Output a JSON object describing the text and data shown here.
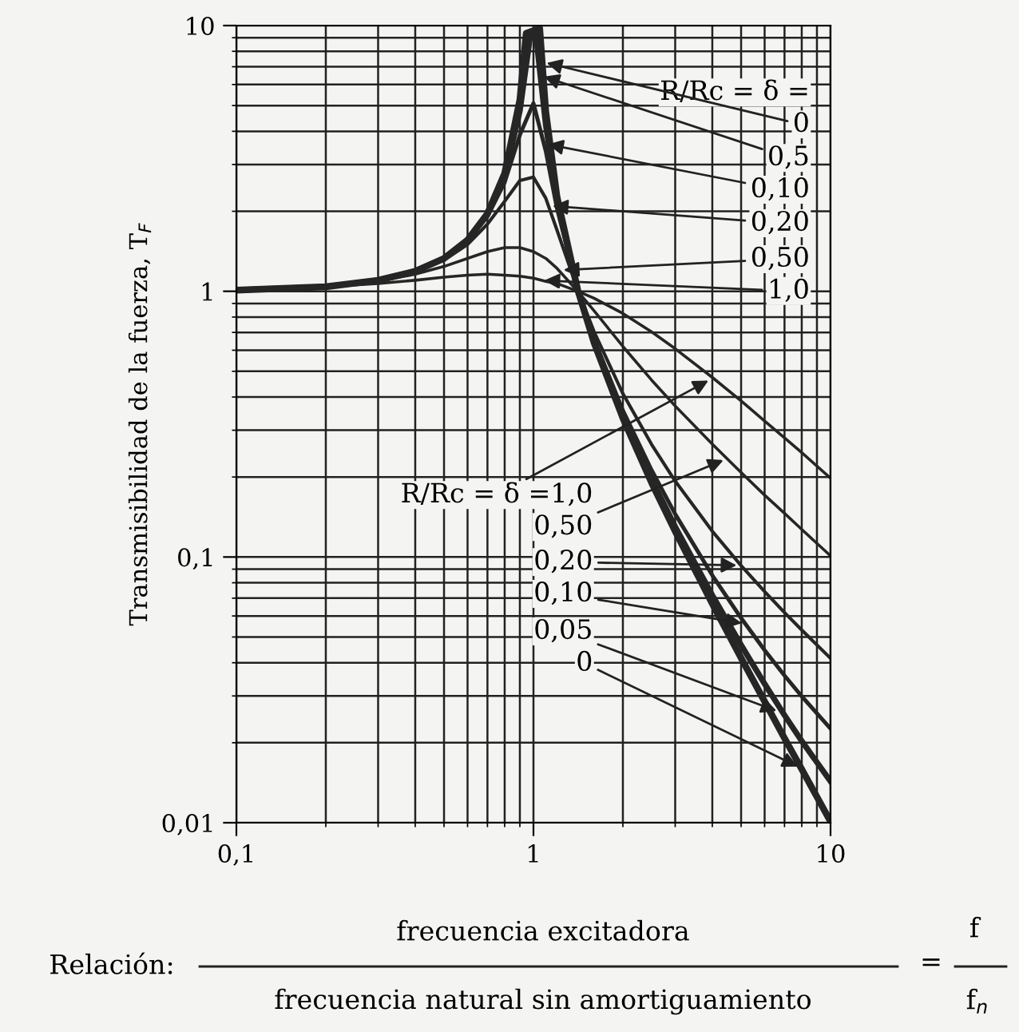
{
  "chart_data": {
    "type": "line",
    "ylabel": "Transmisibilidad de la fuerza, T$_{F}$",
    "x": [
      0.1,
      0.2,
      0.3,
      0.4,
      0.5,
      0.6,
      0.7,
      0.8,
      0.9,
      1.0,
      1.1,
      1.2,
      1.41,
      1.6,
      2,
      2.5,
      3,
      4,
      5,
      6,
      7,
      8,
      10
    ],
    "series": [
      {
        "color": "#262626",
        "x": [
          0.1,
          0.2,
          0.3,
          0.4,
          0.5,
          0.6,
          0.7,
          0.8,
          0.9,
          0.945,
          1.05,
          1.1,
          1.2,
          1.41,
          1.6,
          2,
          2.5,
          3,
          4,
          5,
          6,
          7,
          8,
          10
        ],
        "values": [
          1.01,
          1.04,
          1.1,
          1.19,
          1.33,
          1.56,
          1.96,
          2.78,
          5.26,
          9.35,
          9.76,
          4.76,
          2.27,
          1.01,
          0.64,
          0.333,
          0.19,
          0.125,
          0.0667,
          0.0417,
          0.0286,
          0.0208,
          0.0159,
          0.0101
        ]
      },
      {
        "color": "#262626",
        "x": [
          0.1,
          0.2,
          0.3,
          0.4,
          0.5,
          0.6,
          0.7,
          0.8,
          0.9,
          0.98,
          1.02,
          1.1,
          1.2,
          1.41,
          1.6,
          2,
          2.5,
          3,
          4,
          5,
          6,
          7,
          8,
          10
        ],
        "values": [
          1.01,
          1.04,
          1.1,
          1.19,
          1.33,
          1.56,
          1.95,
          2.72,
          4.78,
          9.5,
          9.16,
          4.24,
          2.21,
          1.01,
          0.646,
          0.339,
          0.196,
          0.13,
          0.0718,
          0.0466,
          0.0333,
          0.0254,
          0.0203,
          0.0143
        ]
      },
      {
        "color": "#262626",
        "values": [
          1.01,
          1.04,
          1.1,
          1.19,
          1.33,
          1.55,
          1.91,
          2.57,
          3.88,
          5.1,
          3.37,
          2.05,
          1.01,
          0.659,
          0.356,
          0.212,
          0.145,
          0.0853,
          0.0589,
          0.0446,
          0.0358,
          0.0299,
          0.0226
        ]
      },
      {
        "color": "#262626",
        "values": [
          1.01,
          1.04,
          1.1,
          1.18,
          1.31,
          1.5,
          1.79,
          2.18,
          2.61,
          2.69,
          2.24,
          1.7,
          1.01,
          0.704,
          0.412,
          0.265,
          0.193,
          0.125,
          0.0928,
          0.0741,
          0.0618,
          0.0531,
          0.0416
        ]
      },
      {
        "color": "#262626",
        "values": [
          1.01,
          1.04,
          1.09,
          1.16,
          1.24,
          1.33,
          1.41,
          1.46,
          1.46,
          1.41,
          1.33,
          1.22,
          1.0,
          0.844,
          0.62,
          0.463,
          0.37,
          0.266,
          0.208,
          0.171,
          0.146,
          0.127,
          0.101
        ]
      },
      {
        "color": "#262626",
        "values": [
          1.01,
          1.04,
          1.07,
          1.1,
          1.13,
          1.15,
          1.16,
          1.15,
          1.14,
          1.12,
          1.09,
          1.07,
          1.0,
          0.942,
          0.825,
          0.703,
          0.608,
          0.474,
          0.387,
          0.325,
          0.281,
          0.247,
          0.198
        ]
      }
    ],
    "log": "xy",
    "xlim": [
      0.1,
      10
    ],
    "ylim": [
      0.01,
      10
    ],
    "xticks": [
      {
        "value": 0.1,
        "label": "0,1"
      },
      1,
      10
    ],
    "yticks": [
      {
        "value": 0.01,
        "label": "0,01"
      },
      {
        "value": 0.1,
        "label": "0,1"
      },
      1,
      10
    ],
    "grid": true,
    "legend": false,
    "annotations": [
      "R/Rc = δ =",
      {
        "text": "0",
        "x": 1.07,
        "y": 7.3
      },
      {
        "text": "0,5",
        "x": 1.05,
        "y": 6.5
      },
      {
        "text": "0,10",
        "x": 1.08,
        "y": 3.6
      },
      {
        "text": "0,20",
        "x": 1.12,
        "y": 2.1
      },
      {
        "text": "0,50",
        "x": 1.22,
        "y": 1.2
      },
      {
        "text": "1,0",
        "x": 1.05,
        "y": 1.1
      },
      {
        "text": "R/Rc = δ =1,0",
        "x": 4,
        "y": 0.47
      },
      {
        "text": "0,50",
        "x": 4.5,
        "y": 0.235
      },
      {
        "text": "0,20",
        "x": 5,
        "y": 0.093
      },
      {
        "text": "0,10",
        "x": 5.2,
        "y": 0.056
      },
      {
        "text": "0,05",
        "x": 6.8,
        "y": 0.026
      },
      {
        "text": "0",
        "x": 8,
        "y": 0.016
      },
      "Relación:",
      "frecuencia excitadora",
      "frecuencia natural sin amortiguamiento",
      "=",
      "f",
      "f$_{n}$"
    ]
  }
}
